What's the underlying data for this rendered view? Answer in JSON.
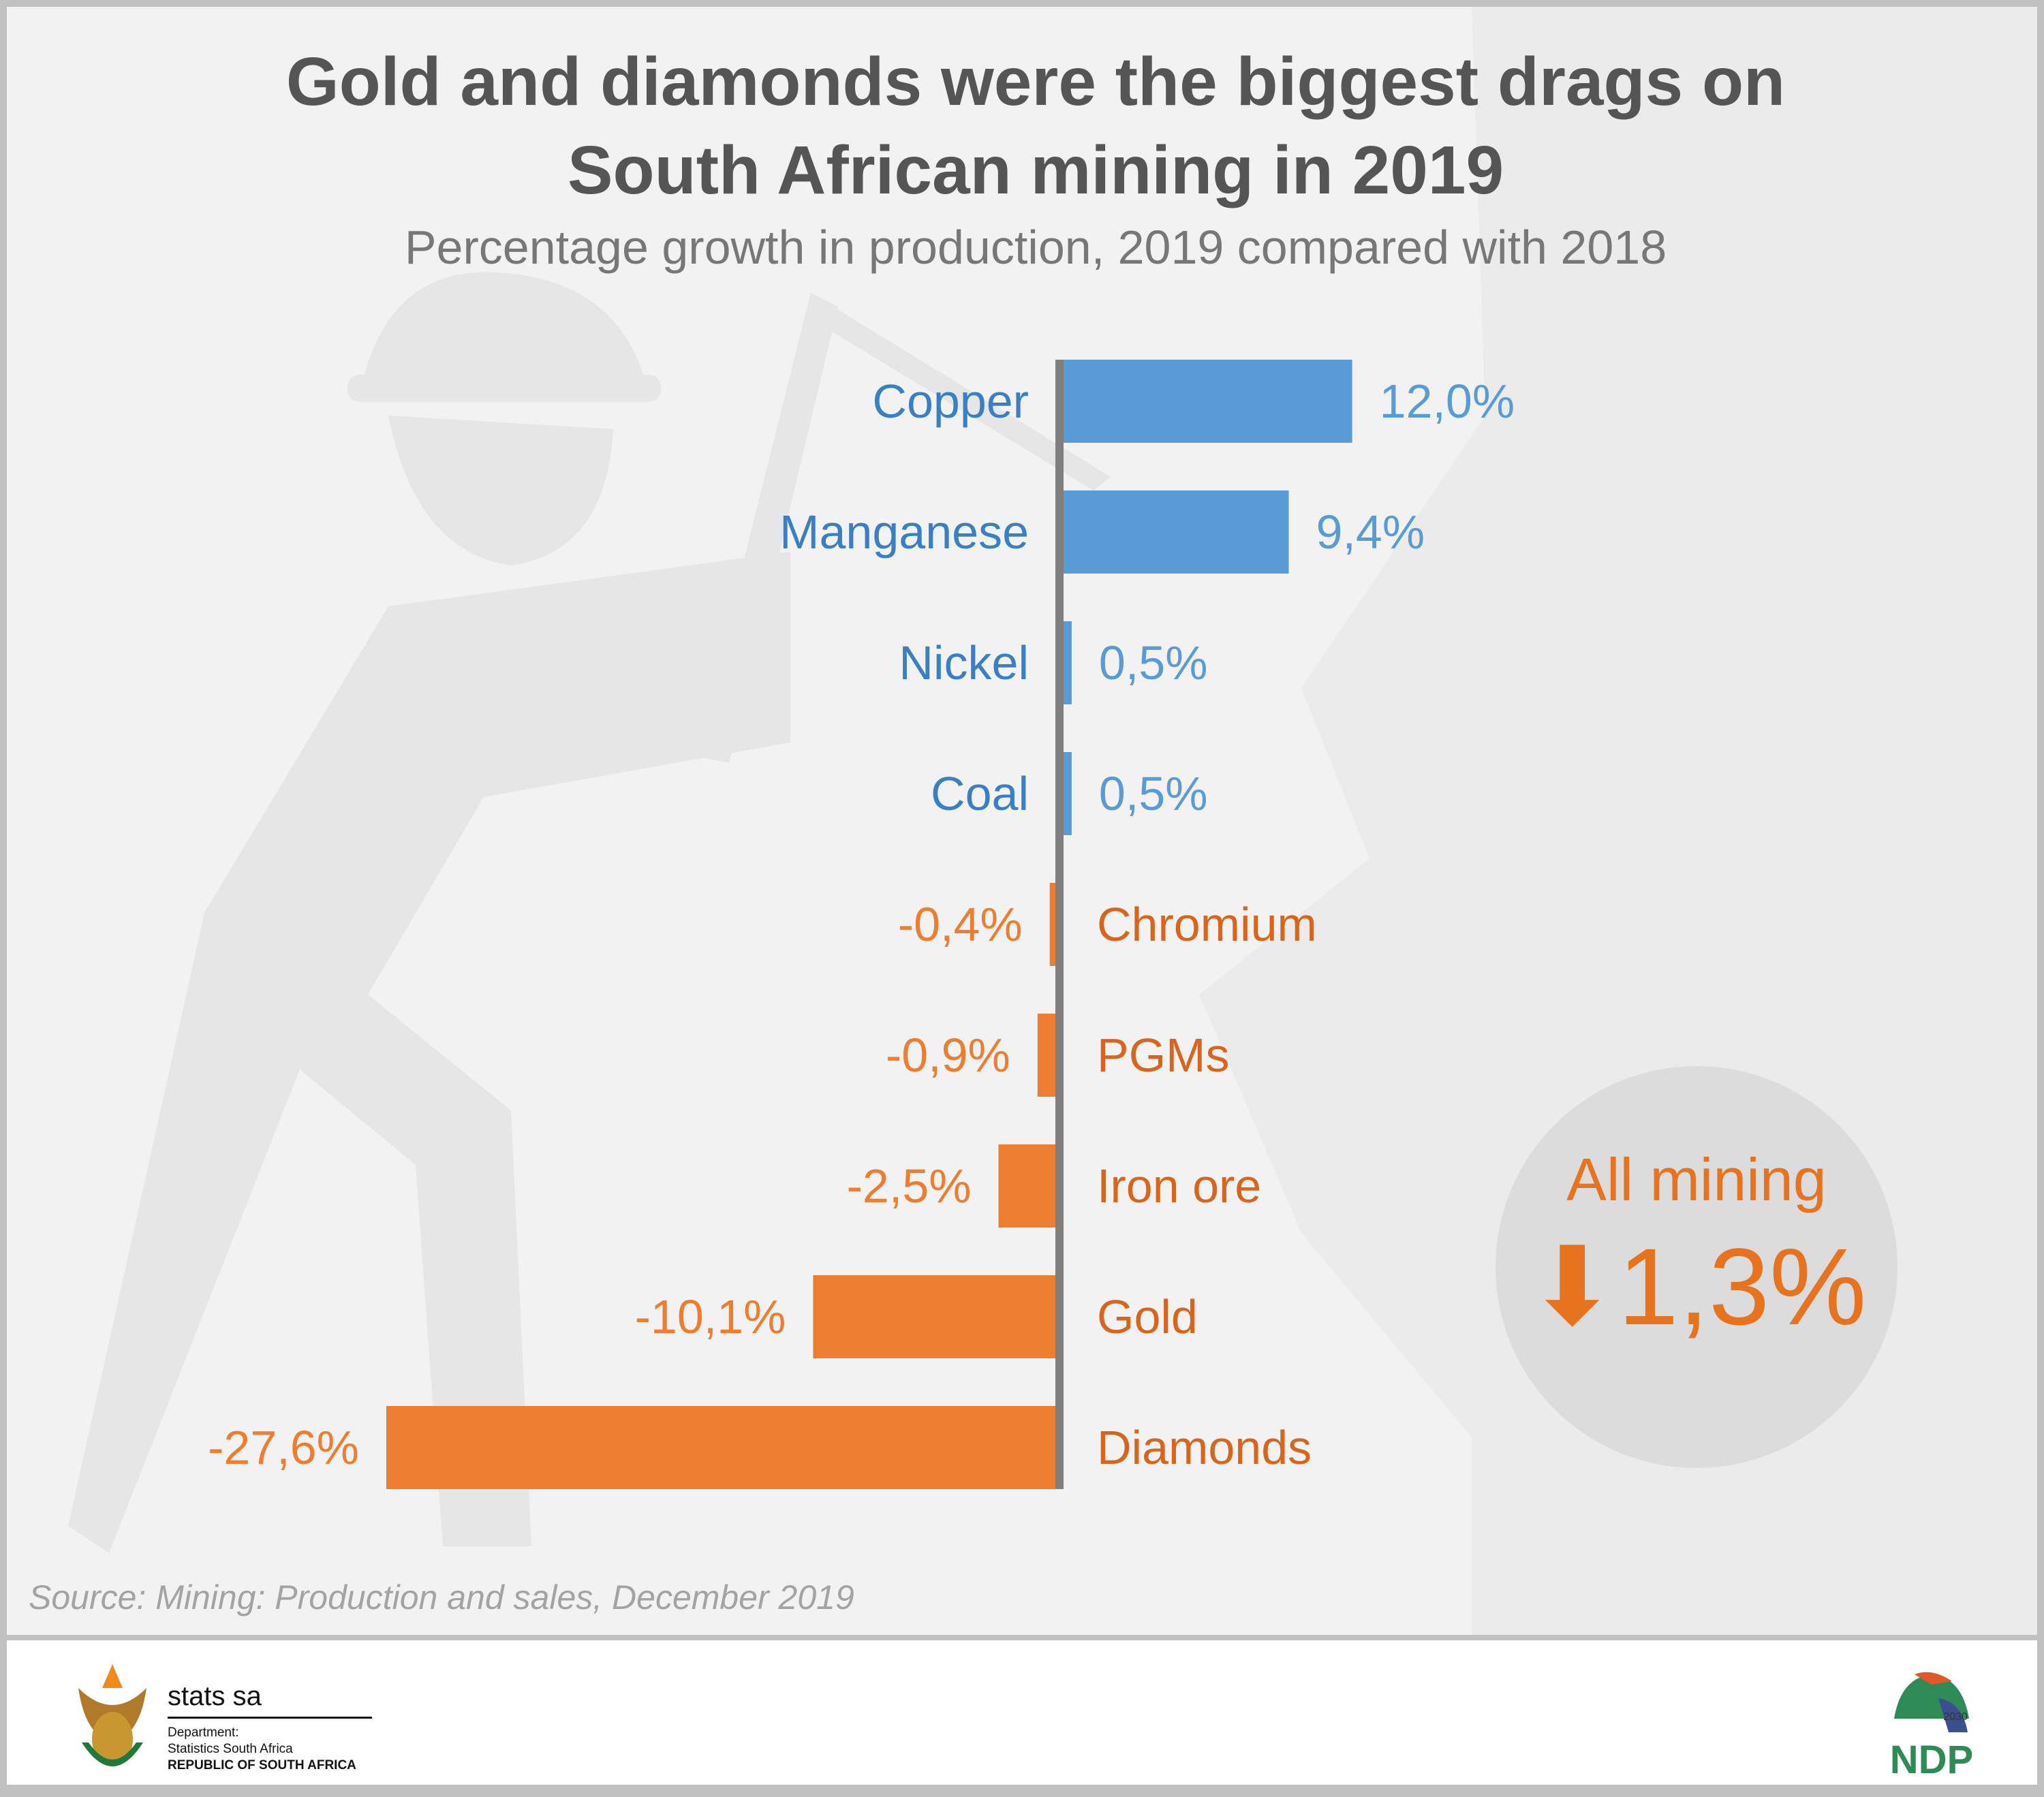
{
  "title_lines": [
    "Gold and diamonds were the biggest drags on",
    "South African mining in 2019"
  ],
  "subtitle": "Percentage growth in production, 2019 compared with 2018",
  "source": "Source: Mining: Production and sales, December 2019",
  "summary": {
    "label": "All mining",
    "value": "1,3%",
    "direction": "down",
    "icon": "down-arrow-icon"
  },
  "footer": {
    "brand": "stats sa",
    "dept_lines": [
      "Department:",
      "Statistics South Africa",
      "REPUBLIC OF SOUTH AFRICA"
    ],
    "ndp_logo": "NDP 2030"
  },
  "colors": {
    "positive": "#5b9bd5",
    "positive_label": "#3a7fc4",
    "negative": "#ed7d31",
    "negative_label": "#d9651c",
    "axis": "#7f7f7f"
  },
  "chart_data": {
    "type": "bar",
    "orientation": "horizontal",
    "categories": [
      "Copper",
      "Manganese",
      "Nickel",
      "Coal",
      "Chromium",
      "PGMs",
      "Iron ore",
      "Gold",
      "Diamonds"
    ],
    "values": [
      12.0,
      9.4,
      0.5,
      0.5,
      -0.4,
      -0.9,
      -2.5,
      -10.1,
      -27.6
    ],
    "data_labels": [
      "12,0%",
      "9,4%",
      "0,5%",
      "0,5%",
      "-0,4%",
      "-0,9%",
      "-2,5%",
      "-10,1%",
      "-27,6%"
    ],
    "unit": "%",
    "grid": false
  }
}
